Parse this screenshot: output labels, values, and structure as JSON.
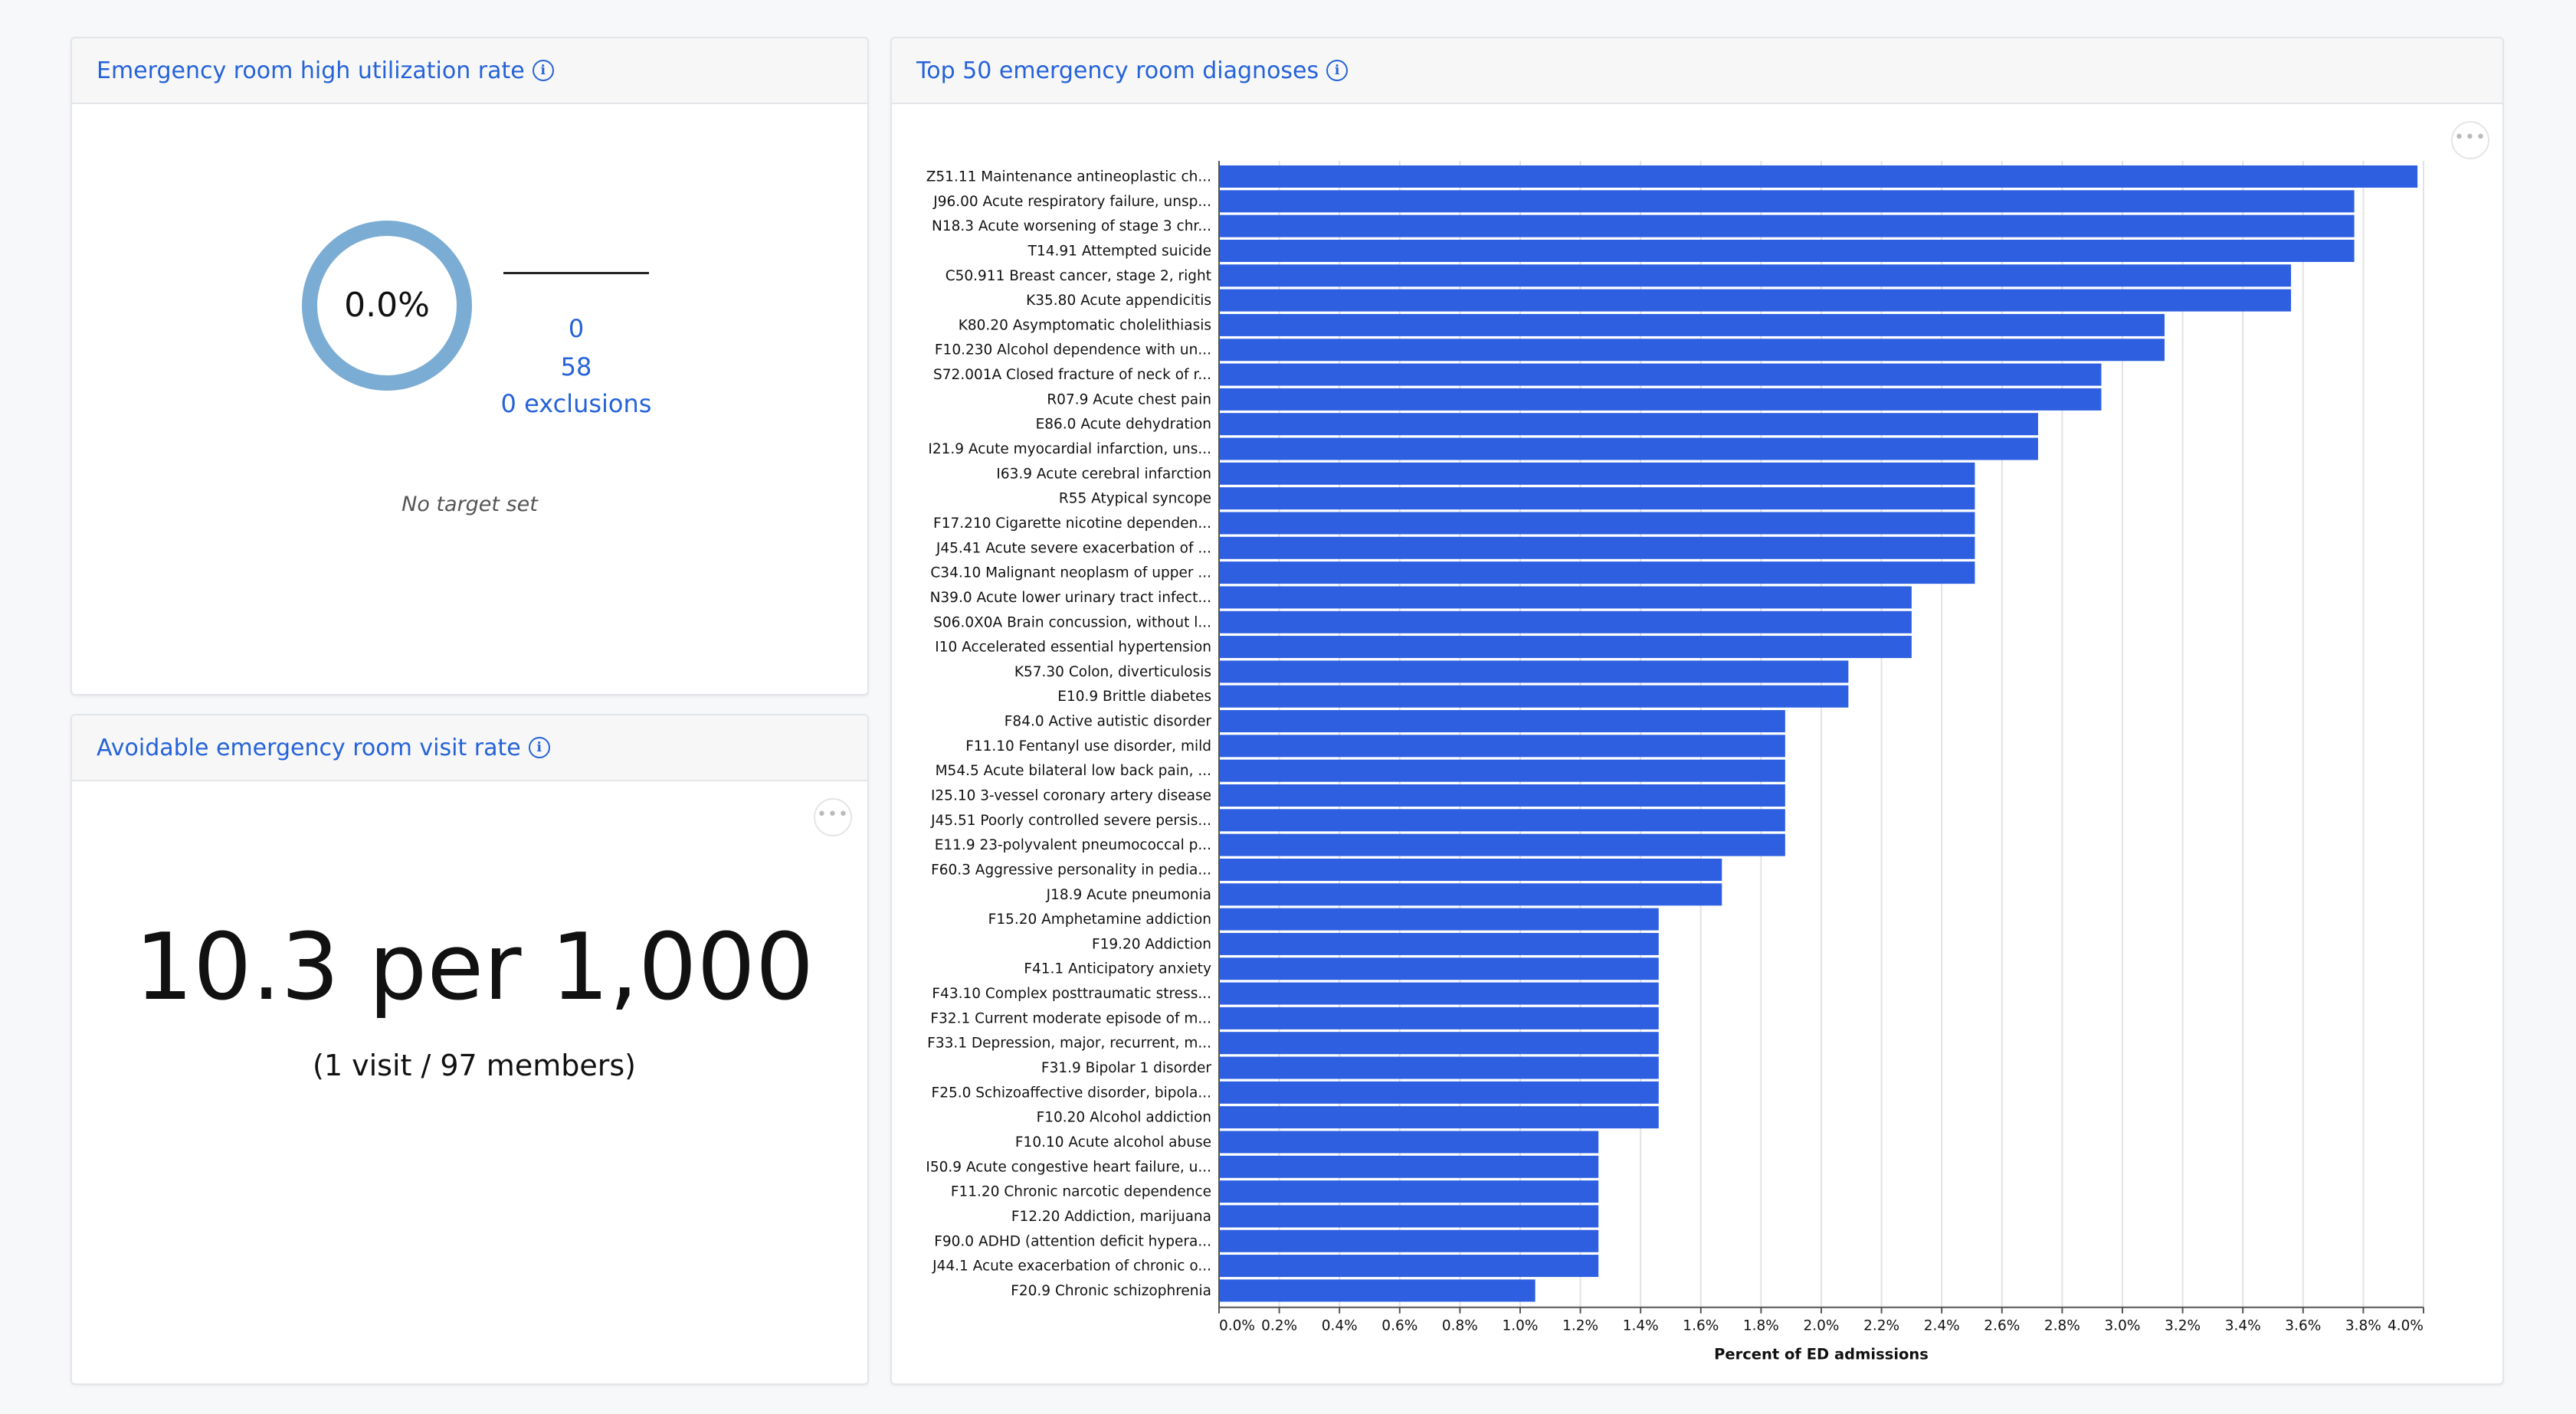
{
  "high_util": {
    "title": "Emergency room high utilization rate",
    "rate": "0.0%",
    "numerator": "0",
    "denominator": "58",
    "exclusions": "0 exclusions",
    "target_note": "No target set",
    "ring_color": "#7bacd4"
  },
  "avoidable": {
    "title": "Avoidable emergency room visit rate",
    "rate": "10.3 per 1,000",
    "detail": "(1 visit / 97 members)"
  },
  "top50": {
    "title": "Top 50 emergency room diagnoses"
  },
  "chart_data": {
    "type": "bar",
    "orientation": "horizontal",
    "bar_color": "#2d5fe0",
    "xlabel": "Percent of ED admissions",
    "xlim": [
      0,
      4.0
    ],
    "x_ticks": [
      "0.0%",
      "0.2%",
      "0.4%",
      "0.6%",
      "0.8%",
      "1.0%",
      "1.2%",
      "1.4%",
      "1.6%",
      "1.8%",
      "2.0%",
      "2.2%",
      "2.4%",
      "2.6%",
      "2.8%",
      "3.0%",
      "3.2%",
      "3.4%",
      "3.6%",
      "3.8%",
      "4.0%"
    ],
    "grid": true,
    "categories": [
      "Z51.11 Maintenance antineoplastic ch...",
      "J96.00 Acute respiratory failure, unsp...",
      "N18.3 Acute worsening of stage 3 chr...",
      "T14.91 Attempted suicide",
      "C50.911 Breast cancer, stage 2, right",
      "K35.80 Acute appendicitis",
      "K80.20 Asymptomatic cholelithiasis",
      "F10.230 Alcohol dependence with un...",
      "S72.001A Closed fracture of neck of r...",
      "R07.9 Acute chest pain",
      "E86.0 Acute dehydration",
      "I21.9 Acute myocardial infarction, uns...",
      "I63.9 Acute cerebral infarction",
      "R55 Atypical syncope",
      "F17.210 Cigarette nicotine dependen...",
      "J45.41 Acute severe exacerbation of ...",
      "C34.10 Malignant neoplasm of upper ...",
      "N39.0 Acute lower urinary tract infect...",
      "S06.0X0A Brain concussion, without l...",
      "I10 Accelerated essential hypertension",
      "K57.30 Colon, diverticulosis",
      "E10.9 Brittle diabetes",
      "F84.0 Active autistic disorder",
      "F11.10 Fentanyl use disorder, mild",
      "M54.5 Acute bilateral low back pain, ...",
      "I25.10 3-vessel coronary artery disease",
      "J45.51 Poorly controlled severe persis...",
      "E11.9 23-polyvalent pneumococcal p...",
      "F60.3 Aggressive personality in pedia...",
      "J18.9 Acute pneumonia",
      "F15.20 Amphetamine addiction",
      "F19.20 Addiction",
      "F41.1 Anticipatory anxiety",
      "F43.10 Complex posttraumatic stress...",
      "F32.1 Current moderate episode of m...",
      "F33.1 Depression, major, recurrent, m...",
      "F31.9 Bipolar 1 disorder",
      "F25.0 Schizoaffective disorder, bipola...",
      "F10.20 Alcohol addiction",
      "F10.10 Acute alcohol abuse",
      "I50.9 Acute congestive heart failure, u...",
      "F11.20 Chronic narcotic dependence",
      "F12.20 Addiction, marijuana",
      "F90.0 ADHD (attention deficit hypera...",
      "J44.1 Acute exacerbation of chronic o...",
      "F20.9 Chronic schizophrenia"
    ],
    "values": [
      3.98,
      3.77,
      3.77,
      3.77,
      3.56,
      3.56,
      3.14,
      3.14,
      2.93,
      2.93,
      2.72,
      2.72,
      2.51,
      2.51,
      2.51,
      2.51,
      2.51,
      2.3,
      2.3,
      2.3,
      2.09,
      2.09,
      1.88,
      1.88,
      1.88,
      1.88,
      1.88,
      1.88,
      1.67,
      1.67,
      1.46,
      1.46,
      1.46,
      1.46,
      1.46,
      1.46,
      1.46,
      1.46,
      1.46,
      1.26,
      1.26,
      1.26,
      1.26,
      1.26,
      1.26,
      1.05
    ]
  }
}
